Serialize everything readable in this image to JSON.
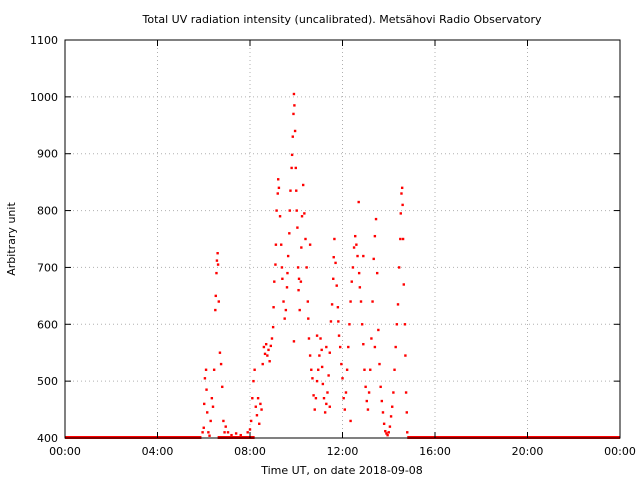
{
  "chart_data": {
    "type": "scatter",
    "title": "Total UV radiation intensity (uncalibrated). Metsähovi Radio Observatory",
    "xlabel": "Time UT, on date 2018-09-08",
    "ylabel": "Arbitrary unit",
    "xlim": [
      0,
      24
    ],
    "ylim": [
      400,
      1100
    ],
    "x_unit": "hours UT",
    "x_ticks": [
      {
        "value": 0,
        "label": "00:00"
      },
      {
        "value": 4,
        "label": "04:00"
      },
      {
        "value": 8,
        "label": "08:00"
      },
      {
        "value": 12,
        "label": "12:00"
      },
      {
        "value": 16,
        "label": "16:00"
      },
      {
        "value": 20,
        "label": "20:00"
      },
      {
        "value": 24,
        "label": "00:00"
      }
    ],
    "y_ticks": [
      {
        "value": 400,
        "label": "400"
      },
      {
        "value": 500,
        "label": "500"
      },
      {
        "value": 600,
        "label": "600"
      },
      {
        "value": 700,
        "label": "700"
      },
      {
        "value": 800,
        "label": "800"
      },
      {
        "value": 900,
        "label": "900"
      },
      {
        "value": 1000,
        "label": "1000"
      },
      {
        "value": 1100,
        "label": "1100"
      }
    ],
    "grid": true,
    "marker_color": "#ff0000",
    "baseline": {
      "value": 400,
      "segments": [
        [
          0,
          5.9
        ],
        [
          6.6,
          8.2
        ],
        [
          14.8,
          24
        ]
      ]
    },
    "points": [
      [
        5.95,
        410
      ],
      [
        6.0,
        418
      ],
      [
        6.02,
        460
      ],
      [
        6.05,
        505
      ],
      [
        6.1,
        520
      ],
      [
        6.12,
        485
      ],
      [
        6.15,
        445
      ],
      [
        6.2,
        410
      ],
      [
        6.25,
        404
      ],
      [
        6.3,
        430
      ],
      [
        6.35,
        470
      ],
      [
        6.4,
        455
      ],
      [
        6.45,
        520
      ],
      [
        6.5,
        625
      ],
      [
        6.52,
        650
      ],
      [
        6.55,
        690
      ],
      [
        6.57,
        712
      ],
      [
        6.6,
        725
      ],
      [
        6.62,
        705
      ],
      [
        6.65,
        640
      ],
      [
        6.7,
        550
      ],
      [
        6.75,
        530
      ],
      [
        6.8,
        490
      ],
      [
        6.85,
        430
      ],
      [
        6.9,
        410
      ],
      [
        6.95,
        420
      ],
      [
        7.05,
        410
      ],
      [
        7.2,
        405
      ],
      [
        7.4,
        408
      ],
      [
        7.6,
        405
      ],
      [
        7.9,
        410
      ],
      [
        8.0,
        415
      ],
      [
        8.05,
        430
      ],
      [
        8.1,
        470
      ],
      [
        8.15,
        500
      ],
      [
        8.2,
        520
      ],
      [
        8.25,
        455
      ],
      [
        8.3,
        440
      ],
      [
        8.35,
        470
      ],
      [
        8.4,
        425
      ],
      [
        8.45,
        460
      ],
      [
        8.5,
        450
      ],
      [
        8.55,
        530
      ],
      [
        8.6,
        560
      ],
      [
        8.65,
        548
      ],
      [
        8.7,
        565
      ],
      [
        8.75,
        545
      ],
      [
        8.8,
        555
      ],
      [
        8.85,
        535
      ],
      [
        8.9,
        562
      ],
      [
        8.95,
        575
      ],
      [
        9.0,
        595
      ],
      [
        9.02,
        630
      ],
      [
        9.05,
        675
      ],
      [
        9.1,
        705
      ],
      [
        9.12,
        740
      ],
      [
        9.15,
        800
      ],
      [
        9.2,
        830
      ],
      [
        9.22,
        855
      ],
      [
        9.25,
        840
      ],
      [
        9.3,
        790
      ],
      [
        9.35,
        740
      ],
      [
        9.38,
        700
      ],
      [
        9.4,
        680
      ],
      [
        9.45,
        640
      ],
      [
        9.5,
        610
      ],
      [
        9.55,
        625
      ],
      [
        9.6,
        665
      ],
      [
        9.62,
        690
      ],
      [
        9.65,
        720
      ],
      [
        9.7,
        760
      ],
      [
        9.72,
        800
      ],
      [
        9.75,
        835
      ],
      [
        9.8,
        875
      ],
      [
        9.82,
        898
      ],
      [
        9.85,
        930
      ],
      [
        9.88,
        970
      ],
      [
        9.9,
        1005
      ],
      [
        9.92,
        985
      ],
      [
        9.95,
        940
      ],
      [
        9.98,
        875
      ],
      [
        10.0,
        835
      ],
      [
        10.02,
        800
      ],
      [
        10.05,
        770
      ],
      [
        10.08,
        700
      ],
      [
        10.1,
        660
      ],
      [
        10.15,
        625
      ],
      [
        10.2,
        675
      ],
      [
        10.22,
        735
      ],
      [
        10.25,
        790
      ],
      [
        10.3,
        845
      ],
      [
        10.35,
        795
      ],
      [
        10.4,
        750
      ],
      [
        10.45,
        700
      ],
      [
        10.5,
        640
      ],
      [
        10.52,
        610
      ],
      [
        10.55,
        575
      ],
      [
        10.6,
        545
      ],
      [
        10.65,
        520
      ],
      [
        10.7,
        505
      ],
      [
        10.75,
        475
      ],
      [
        10.8,
        450
      ],
      [
        10.85,
        470
      ],
      [
        10.9,
        500
      ],
      [
        10.95,
        520
      ],
      [
        11.0,
        545
      ],
      [
        11.05,
        575
      ],
      [
        11.1,
        555
      ],
      [
        11.12,
        525
      ],
      [
        11.15,
        495
      ],
      [
        11.2,
        470
      ],
      [
        11.25,
        445
      ],
      [
        11.3,
        460
      ],
      [
        11.35,
        480
      ],
      [
        11.4,
        510
      ],
      [
        11.45,
        550
      ],
      [
        11.5,
        605
      ],
      [
        11.55,
        635
      ],
      [
        11.6,
        680
      ],
      [
        11.62,
        718
      ],
      [
        11.65,
        750
      ],
      [
        11.7,
        708
      ],
      [
        11.75,
        668
      ],
      [
        11.8,
        630
      ],
      [
        11.82,
        605
      ],
      [
        11.85,
        580
      ],
      [
        11.9,
        560
      ],
      [
        11.95,
        530
      ],
      [
        12.0,
        505
      ],
      [
        12.05,
        470
      ],
      [
        12.1,
        450
      ],
      [
        12.15,
        480
      ],
      [
        12.2,
        520
      ],
      [
        12.25,
        560
      ],
      [
        12.3,
        600
      ],
      [
        12.35,
        640
      ],
      [
        12.4,
        675
      ],
      [
        12.45,
        700
      ],
      [
        12.5,
        735
      ],
      [
        12.55,
        755
      ],
      [
        12.6,
        740
      ],
      [
        12.65,
        720
      ],
      [
        12.7,
        815
      ],
      [
        12.72,
        690
      ],
      [
        12.75,
        665
      ],
      [
        12.8,
        640
      ],
      [
        12.85,
        600
      ],
      [
        12.9,
        565
      ],
      [
        12.95,
        520
      ],
      [
        13.0,
        490
      ],
      [
        13.05,
        465
      ],
      [
        13.1,
        450
      ],
      [
        13.15,
        480
      ],
      [
        13.2,
        520
      ],
      [
        13.25,
        575
      ],
      [
        13.3,
        640
      ],
      [
        13.35,
        715
      ],
      [
        13.4,
        755
      ],
      [
        13.45,
        785
      ],
      [
        13.5,
        690
      ],
      [
        13.55,
        590
      ],
      [
        13.6,
        530
      ],
      [
        13.65,
        490
      ],
      [
        13.7,
        465
      ],
      [
        13.75,
        445
      ],
      [
        13.8,
        425
      ],
      [
        13.85,
        412
      ],
      [
        13.9,
        408
      ],
      [
        13.95,
        405
      ],
      [
        14.0,
        410
      ],
      [
        14.05,
        420
      ],
      [
        14.1,
        438
      ],
      [
        14.15,
        455
      ],
      [
        14.2,
        480
      ],
      [
        14.25,
        520
      ],
      [
        14.3,
        560
      ],
      [
        14.35,
        600
      ],
      [
        14.4,
        635
      ],
      [
        14.45,
        700
      ],
      [
        14.5,
        750
      ],
      [
        14.52,
        795
      ],
      [
        14.55,
        830
      ],
      [
        14.58,
        840
      ],
      [
        14.6,
        810
      ],
      [
        14.62,
        750
      ],
      [
        14.65,
        670
      ],
      [
        14.7,
        600
      ],
      [
        14.72,
        545
      ],
      [
        14.75,
        480
      ],
      [
        14.78,
        445
      ],
      [
        14.8,
        410
      ],
      [
        10.12,
        680
      ],
      [
        10.6,
        740
      ],
      [
        11.3,
        560
      ],
      [
        12.9,
        720
      ],
      [
        13.4,
        560
      ],
      [
        9.9,
        570
      ],
      [
        11.45,
        455
      ],
      [
        12.35,
        430
      ],
      [
        10.9,
        580
      ]
    ]
  }
}
